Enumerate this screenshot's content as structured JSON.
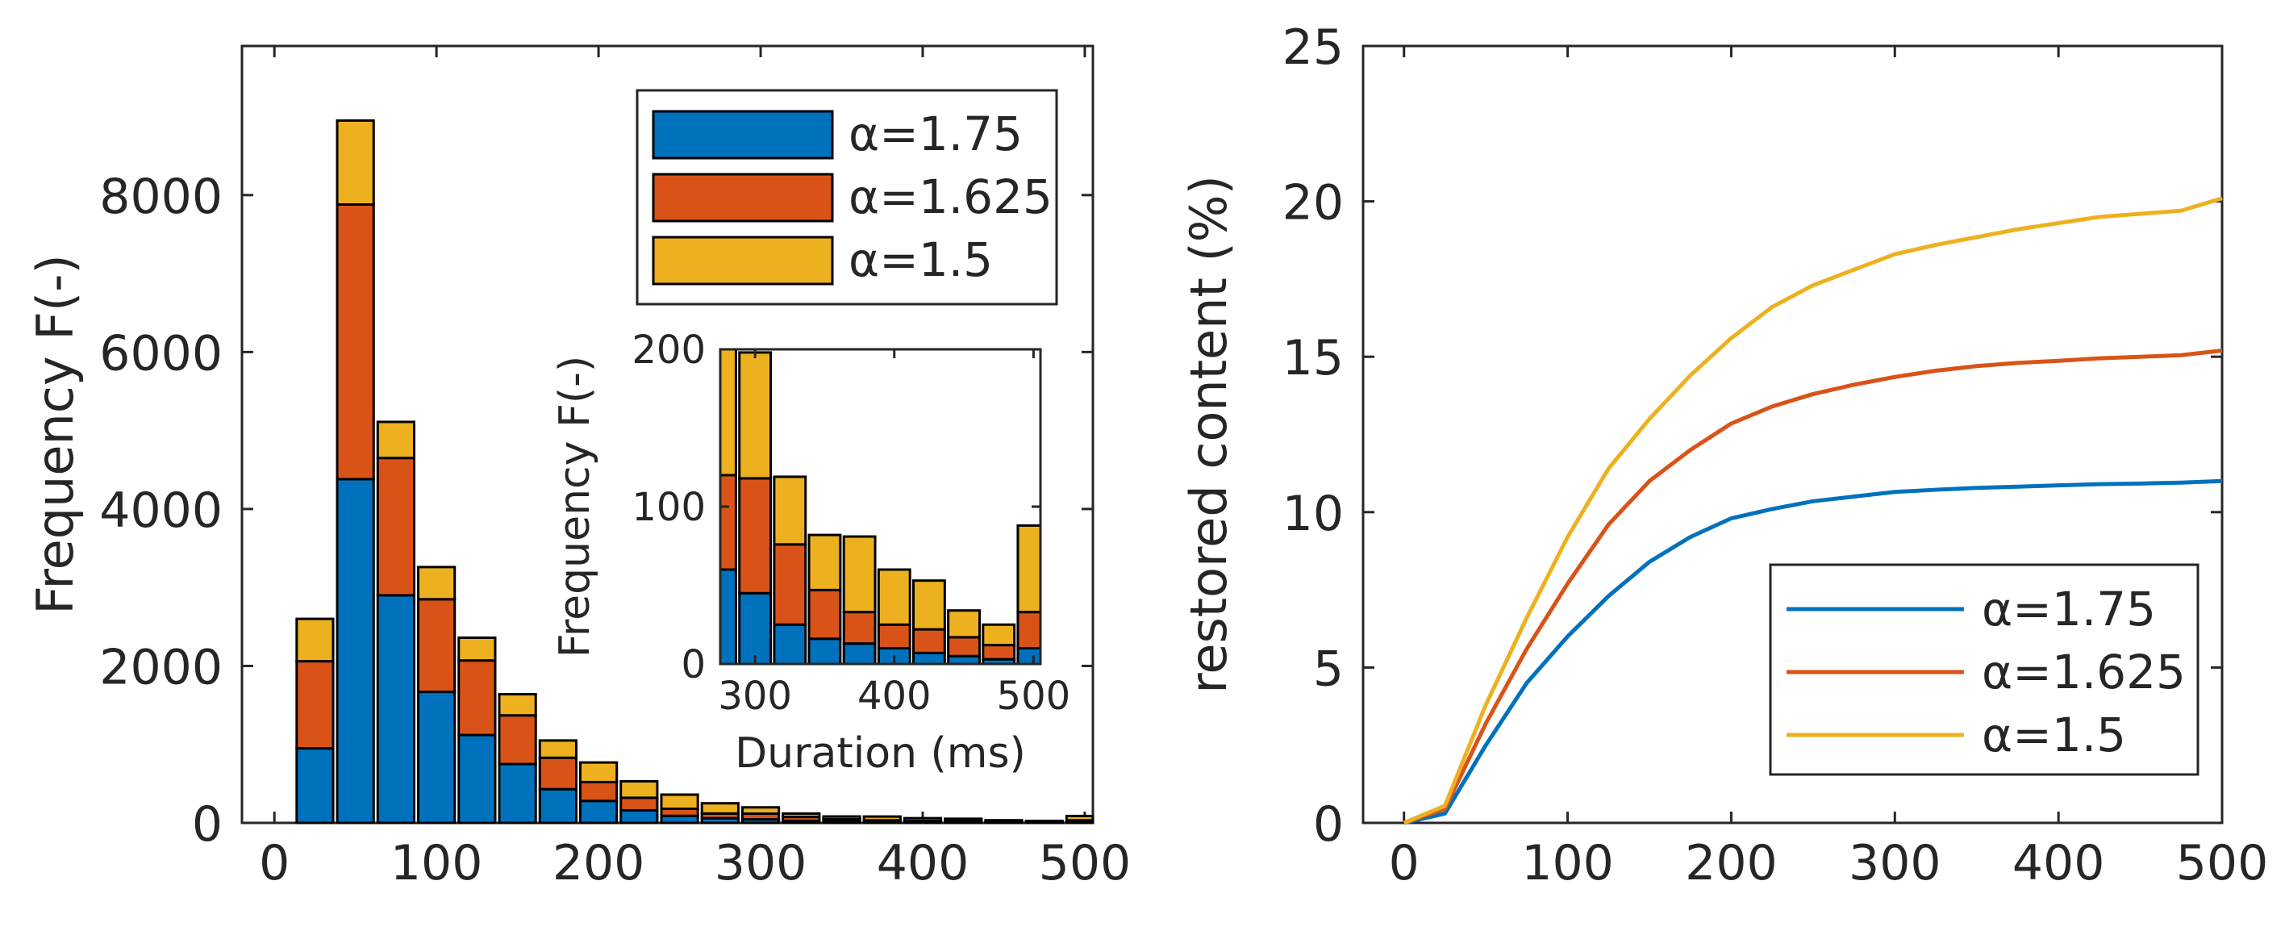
{
  "colors": {
    "s1": "#0072BD",
    "s2": "#D95319",
    "s3": "#EDB120",
    "axis": "#262626",
    "edge": "#000000"
  },
  "legend": {
    "entries": [
      "α=1.75",
      "α=1.625",
      "α=1.5"
    ],
    "placement_left": "top-right",
    "placement_right": "bottom-right"
  },
  "chart_data": [
    {
      "id": "histogram",
      "type": "bar",
      "stacked": true,
      "xlabel": "",
      "ylabel": "Frequency F(-)",
      "xlim": [
        -20,
        505
      ],
      "ylim": [
        0,
        9900
      ],
      "xticks": [
        0,
        100,
        200,
        300,
        400,
        500
      ],
      "yticks": [
        0,
        2000,
        4000,
        6000,
        8000
      ],
      "bin_width": 25,
      "x": [
        25,
        50,
        75,
        100,
        125,
        150,
        175,
        200,
        225,
        250,
        275,
        300,
        325,
        350,
        375,
        400,
        425,
        450,
        475,
        500
      ],
      "series": [
        {
          "name": "α=1.75",
          "values": [
            950,
            4380,
            2900,
            1670,
            1120,
            750,
            430,
            280,
            160,
            90,
            60,
            45,
            25,
            16,
            13,
            10,
            7,
            5,
            3,
            10
          ]
        },
        {
          "name": "α=1.625",
          "values": [
            1110,
            3500,
            1750,
            1180,
            950,
            620,
            400,
            240,
            160,
            90,
            60,
            73,
            51,
            31,
            20,
            15,
            15,
            12,
            9,
            23
          ]
        },
        {
          "name": "α=1.5",
          "values": [
            540,
            1070,
            460,
            410,
            290,
            270,
            220,
            250,
            210,
            180,
            130,
            80,
            43,
            35,
            48,
            35,
            31,
            17,
            13,
            55
          ]
        }
      ],
      "inset": {
        "xlabel": "Duration (ms)",
        "ylabel": "Frequency F(-)",
        "xlim": [
          275,
          505
        ],
        "ylim": [
          0,
          200
        ],
        "xticks": [
          300,
          400,
          500
        ],
        "yticks": [
          0,
          100,
          200
        ]
      }
    },
    {
      "id": "restored",
      "type": "line",
      "xlabel": "",
      "ylabel": "restored content (%)",
      "xlim": [
        -25,
        500
      ],
      "ylim": [
        0,
        25
      ],
      "xticks": [
        0,
        100,
        200,
        300,
        400,
        500
      ],
      "yticks": [
        0,
        5,
        10,
        15,
        20,
        25
      ],
      "x": [
        0,
        25,
        50,
        75,
        100,
        125,
        150,
        175,
        200,
        225,
        250,
        275,
        300,
        325,
        350,
        375,
        400,
        425,
        450,
        475,
        500
      ],
      "series": [
        {
          "name": "α=1.75",
          "values": [
            0,
            0.3,
            2.5,
            4.5,
            6.0,
            7.3,
            8.4,
            9.2,
            9.8,
            10.1,
            10.35,
            10.5,
            10.65,
            10.72,
            10.78,
            10.82,
            10.86,
            10.9,
            10.92,
            10.95,
            11.0
          ]
        },
        {
          "name": "α=1.625",
          "values": [
            0,
            0.45,
            3.2,
            5.6,
            7.7,
            9.6,
            11.0,
            12.0,
            12.85,
            13.4,
            13.8,
            14.1,
            14.35,
            14.55,
            14.7,
            14.8,
            14.87,
            14.95,
            15.0,
            15.05,
            15.2
          ]
        },
        {
          "name": "α=1.5",
          "values": [
            0,
            0.55,
            3.8,
            6.6,
            9.2,
            11.4,
            13.0,
            14.4,
            15.6,
            16.6,
            17.3,
            17.8,
            18.3,
            18.6,
            18.85,
            19.1,
            19.3,
            19.5,
            19.6,
            19.7,
            20.1
          ]
        }
      ]
    }
  ]
}
